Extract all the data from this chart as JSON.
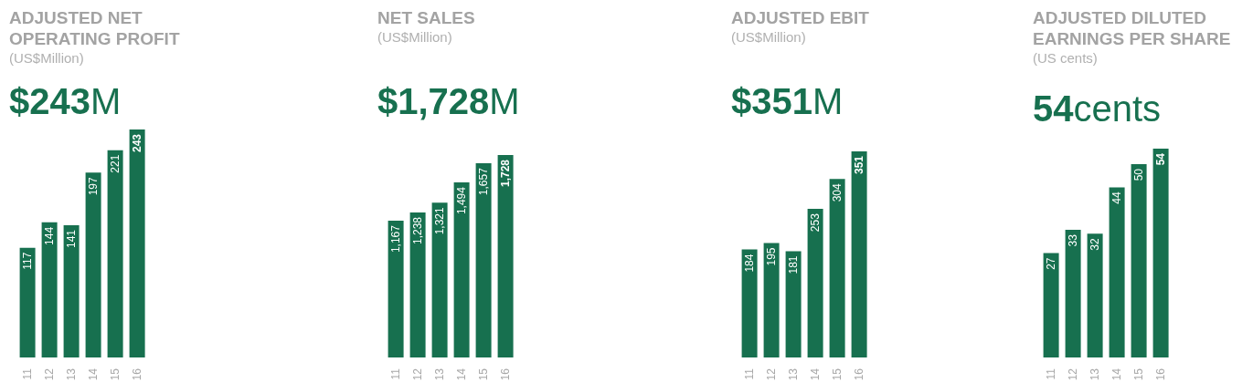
{
  "chart_data": [
    {
      "type": "bar",
      "title": "ADJUSTED NET OPERATING PROFIT",
      "subtitle": "(US$Million)",
      "annotations": [
        "$243M"
      ],
      "categories": [
        "11",
        "12",
        "13",
        "14",
        "15",
        "16"
      ],
      "values": [
        117,
        144,
        141,
        197,
        221,
        243
      ],
      "color": "#17704f",
      "data_labels": true
    },
    {
      "type": "bar",
      "title": "NET SALES",
      "subtitle": "(US$Million)",
      "annotations": [
        "$1,728M"
      ],
      "categories": [
        "11",
        "12",
        "13",
        "14",
        "15",
        "16"
      ],
      "values": [
        1167,
        1238,
        1321,
        1494,
        1657,
        1728
      ],
      "value_labels": [
        "1,167",
        "1,238",
        "1,321",
        "1,494",
        "1,657",
        "1,728"
      ],
      "color": "#17704f"
    },
    {
      "type": "bar",
      "title": "ADJUSTED EBIT",
      "subtitle": "(US$Million)",
      "annotations": [
        "$351M"
      ],
      "categories": [
        "11",
        "12",
        "13",
        "14",
        "15",
        "16"
      ],
      "values": [
        184,
        195,
        181,
        253,
        304,
        351
      ],
      "color": "#17704f",
      "data_labels": true
    },
    {
      "type": "bar",
      "title": "ADJUSTED DILUTED EARNINGS PER SHARE",
      "subtitle": "(US cents)",
      "annotations": [
        "54cents"
      ],
      "categories": [
        "11",
        "12",
        "13",
        "14",
        "15",
        "16"
      ],
      "values": [
        27,
        33,
        32,
        44,
        50,
        54
      ],
      "color": "#17704f",
      "data_labels": true
    }
  ]
}
